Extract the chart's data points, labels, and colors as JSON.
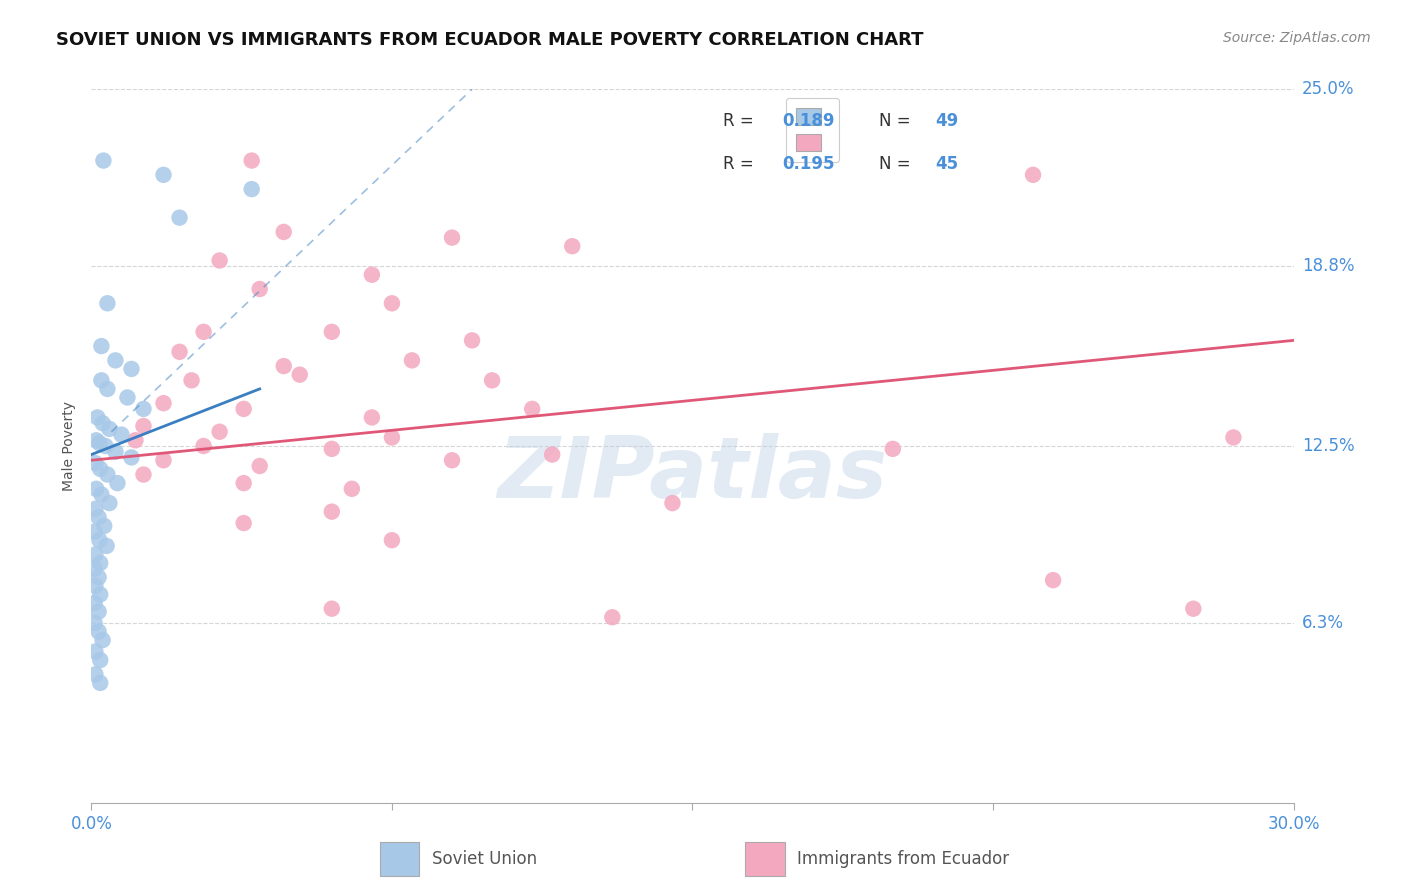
{
  "title": "SOVIET UNION VS IMMIGRANTS FROM ECUADOR MALE POVERTY CORRELATION CHART",
  "source": "Source: ZipAtlas.com",
  "ylabel": "Male Poverty",
  "xlim": [
    0.0,
    30.0
  ],
  "ylim": [
    0.0,
    25.0
  ],
  "ytick_positions": [
    0.0,
    6.3,
    12.5,
    18.8,
    25.0
  ],
  "ytick_labels": [
    "",
    "6.3%",
    "12.5%",
    "18.8%",
    "25.0%"
  ],
  "xtick_positions": [
    0.0,
    7.5,
    15.0,
    22.5,
    30.0
  ],
  "xtick_labels": [
    "0.0%",
    "",
    "",
    "",
    "30.0%"
  ],
  "watermark": "ZIPatlas",
  "legend_soviet_r": "0.189",
  "legend_soviet_n": "49",
  "legend_ecuador_r": "0.195",
  "legend_ecuador_n": "45",
  "soviet_label": "Soviet Union",
  "ecuador_label": "Immigrants from Ecuador",
  "soviet_color": "#a8c8e8",
  "ecuador_color": "#f4a8c0",
  "soviet_line_color": "#3a7fc1",
  "ecuador_line_color": "#e05878",
  "accent_color": "#4a90d9",
  "text_color": "#555555",
  "soviet_scatter_x": [
    0.3,
    1.8,
    4.0,
    2.2,
    0.4,
    0.25,
    0.6,
    1.0,
    0.25,
    0.4,
    0.9,
    1.3,
    0.15,
    0.28,
    0.45,
    0.75,
    0.12,
    0.2,
    0.35,
    0.6,
    1.0,
    0.1,
    0.22,
    0.4,
    0.65,
    0.12,
    0.25,
    0.45,
    0.1,
    0.18,
    0.32,
    0.08,
    0.2,
    0.38,
    0.1,
    0.22,
    0.08,
    0.18,
    0.1,
    0.22,
    0.08,
    0.18,
    0.08,
    0.18,
    0.28,
    0.1,
    0.22,
    0.1,
    0.22
  ],
  "soviet_scatter_y": [
    22.5,
    22.0,
    21.5,
    20.5,
    17.5,
    16.0,
    15.5,
    15.2,
    14.8,
    14.5,
    14.2,
    13.8,
    13.5,
    13.3,
    13.1,
    12.9,
    12.7,
    12.6,
    12.5,
    12.3,
    12.1,
    11.9,
    11.7,
    11.5,
    11.2,
    11.0,
    10.8,
    10.5,
    10.3,
    10.0,
    9.7,
    9.5,
    9.2,
    9.0,
    8.7,
    8.4,
    8.2,
    7.9,
    7.6,
    7.3,
    7.0,
    6.7,
    6.3,
    6.0,
    5.7,
    5.3,
    5.0,
    4.5,
    4.2
  ],
  "ecuador_scatter_x": [
    4.0,
    4.8,
    9.0,
    12.0,
    3.2,
    7.0,
    4.2,
    7.5,
    2.8,
    6.0,
    9.5,
    2.2,
    4.8,
    8.0,
    2.5,
    5.2,
    10.0,
    1.8,
    3.8,
    7.0,
    11.0,
    1.3,
    3.2,
    7.5,
    1.1,
    2.8,
    6.0,
    11.5,
    20.0,
    1.8,
    4.2,
    9.0,
    1.3,
    3.8,
    6.5,
    6.0,
    14.5,
    3.8,
    7.5,
    24.0,
    6.0,
    13.0,
    23.5,
    28.5,
    27.5
  ],
  "ecuador_scatter_y": [
    22.5,
    20.0,
    19.8,
    19.5,
    19.0,
    18.5,
    18.0,
    17.5,
    16.5,
    16.5,
    16.2,
    15.8,
    15.3,
    15.5,
    14.8,
    15.0,
    14.8,
    14.0,
    13.8,
    13.5,
    13.8,
    13.2,
    13.0,
    12.8,
    12.7,
    12.5,
    12.4,
    12.2,
    12.4,
    12.0,
    11.8,
    12.0,
    11.5,
    11.2,
    11.0,
    10.2,
    10.5,
    9.8,
    9.2,
    7.8,
    6.8,
    6.5,
    22.0,
    12.8,
    6.8
  ],
  "su_reg_x0": 0.0,
  "su_reg_x1": 4.2,
  "su_reg_y0": 12.2,
  "su_reg_y1": 14.5,
  "su_dash_x0": 0.5,
  "su_dash_x1": 9.5,
  "su_dash_y0": 13.0,
  "su_dash_y1": 25.0,
  "ec_reg_x0": 0.0,
  "ec_reg_x1": 30.0,
  "ec_reg_y0": 12.0,
  "ec_reg_y1": 16.2
}
